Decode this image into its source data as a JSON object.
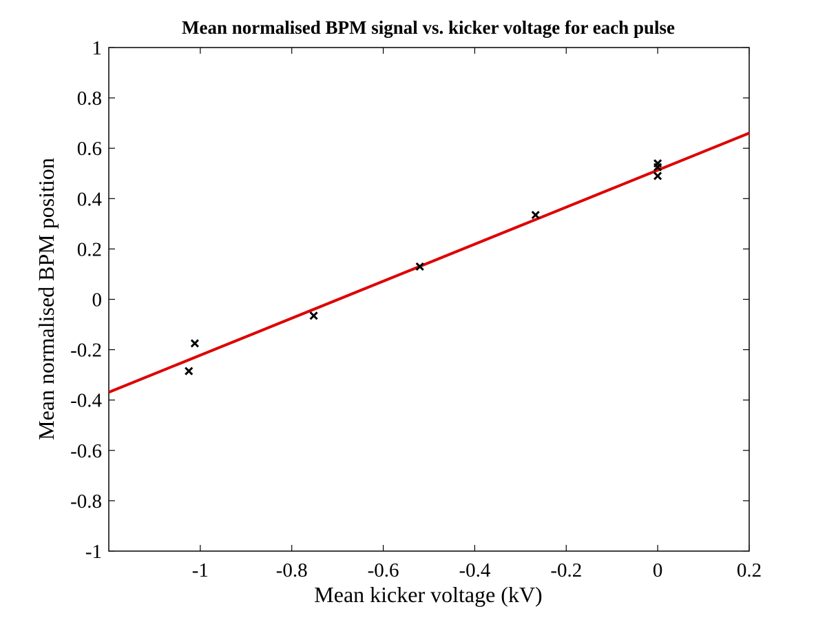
{
  "chart_data": {
    "type": "scatter",
    "title": "Mean normalised BPM signal vs. kicker voltage for each pulse",
    "xlabel": "Mean kicker voltage (kV)",
    "ylabel": "Mean normalised BPM position",
    "xlim": [
      -1.2,
      0.2
    ],
    "ylim": [
      -1,
      1
    ],
    "xticks": [
      -1,
      -0.8,
      -0.6,
      -0.4,
      -0.2,
      0,
      0.2
    ],
    "xtick_labels": [
      "-1",
      "-0.8",
      "-0.6",
      "-0.4",
      "-0.2",
      "0",
      "0.2"
    ],
    "yticks": [
      -1,
      -0.8,
      -0.6,
      -0.4,
      -0.2,
      0,
      0.2,
      0.4,
      0.6,
      0.8,
      1
    ],
    "ytick_labels": [
      "-1",
      "-0.8",
      "-0.6",
      "-0.4",
      "-0.2",
      "0",
      "0.2",
      "0.4",
      "0.6",
      "0.8",
      "1"
    ],
    "grid": false,
    "series": [
      {
        "kind": "scatter",
        "marker": "x",
        "color": "#000000",
        "points": [
          {
            "x": -1.025,
            "y": -0.285
          },
          {
            "x": -1.012,
            "y": -0.175
          },
          {
            "x": -0.752,
            "y": -0.065
          },
          {
            "x": -0.52,
            "y": 0.13
          },
          {
            "x": -0.267,
            "y": 0.335
          },
          {
            "x": 0.0,
            "y": 0.49
          },
          {
            "x": 0.0,
            "y": 0.525
          },
          {
            "x": 0.0,
            "y": 0.54
          }
        ]
      },
      {
        "kind": "line",
        "color": "#dd0000",
        "fit": {
          "slope": 0.735,
          "intercept": 0.513
        }
      }
    ]
  }
}
